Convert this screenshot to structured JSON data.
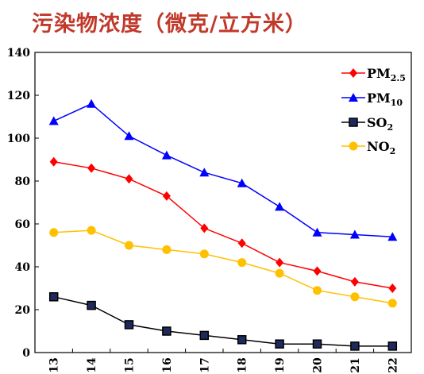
{
  "title": "污染物浓度（微克/立方米）",
  "chart_data": {
    "type": "line",
    "categories": [
      "13",
      "14",
      "15",
      "16",
      "17",
      "18",
      "19",
      "20",
      "21",
      "22"
    ],
    "ylim": [
      0,
      140
    ],
    "yticks": [
      0,
      20,
      40,
      60,
      80,
      100,
      120,
      140
    ],
    "grid": false,
    "legend_position": "top-right",
    "series": [
      {
        "name": "PM2.5",
        "label": "PM",
        "sub": "2.5",
        "color": "#ff0000",
        "marker": "diamond",
        "values": [
          89,
          86,
          81,
          73,
          58,
          51,
          42,
          38,
          33,
          30
        ]
      },
      {
        "name": "PM10",
        "label": "PM",
        "sub": "10",
        "color": "#0000ff",
        "marker": "triangle",
        "values": [
          108,
          116,
          101,
          92,
          84,
          79,
          68,
          56,
          55,
          54
        ]
      },
      {
        "name": "SO2",
        "label": "SO",
        "sub": "2",
        "color": "#000000",
        "marker": "square",
        "fill": "#1f2a5c",
        "values": [
          26,
          22,
          13,
          10,
          8,
          6,
          4,
          4,
          3,
          3
        ]
      },
      {
        "name": "NO2",
        "label": "NO",
        "sub": "2",
        "color": "#ffc000",
        "marker": "circle",
        "values": [
          56,
          57,
          50,
          48,
          46,
          42,
          37,
          29,
          26,
          23
        ]
      }
    ]
  }
}
